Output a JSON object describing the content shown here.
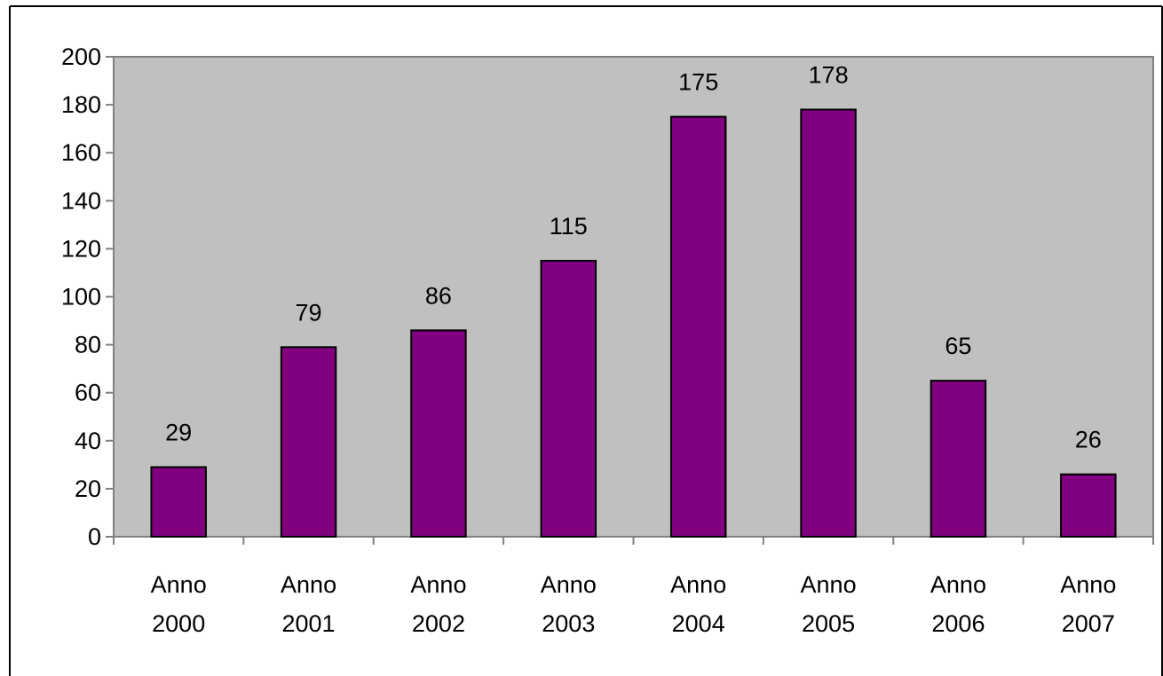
{
  "chart_data": {
    "type": "bar",
    "title": "",
    "xlabel": "",
    "ylabel": "",
    "categories": [
      [
        "Anno",
        "2000"
      ],
      [
        "Anno",
        "2001"
      ],
      [
        "Anno",
        "2002"
      ],
      [
        "Anno",
        "2003"
      ],
      [
        "Anno",
        "2004"
      ],
      [
        "Anno",
        "2005"
      ],
      [
        "Anno",
        "2006"
      ],
      [
        "Anno",
        "2007"
      ]
    ],
    "values": [
      29,
      79,
      86,
      115,
      175,
      178,
      65,
      26
    ],
    "data_labels": [
      "29",
      "79",
      "86",
      "115",
      "175",
      "178",
      "65",
      "26"
    ],
    "ylim": [
      0,
      200
    ],
    "yticks": [
      0,
      20,
      40,
      60,
      80,
      100,
      120,
      140,
      160,
      180,
      200
    ],
    "grid": false,
    "legend": "none",
    "colors": {
      "bar_fill": "#800080",
      "bar_stroke": "#000000",
      "plot_background": "#c0c0c0",
      "axis": "#808080"
    }
  }
}
